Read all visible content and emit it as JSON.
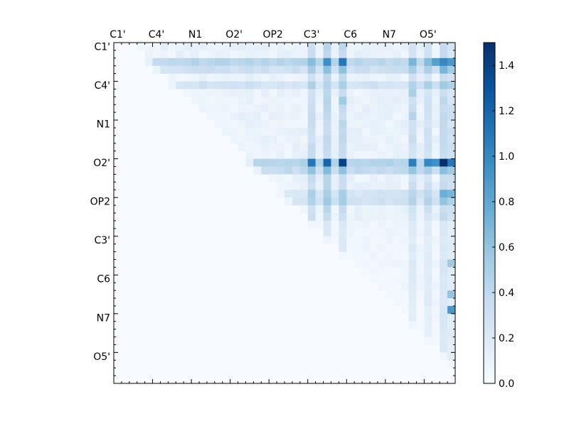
{
  "chart_data": {
    "type": "heatmap",
    "title": "",
    "xlabel": "",
    "ylabel": "",
    "n": 44,
    "tick_labels": [
      "C1'",
      "C4'",
      "N1",
      "O2'",
      "OP2",
      "C3'",
      "C6",
      "N7",
      "O5'"
    ],
    "tick_indices": [
      0,
      5,
      10,
      15,
      20,
      25,
      30,
      35,
      40
    ],
    "colorbar": {
      "vmin": 0.0,
      "vmax": 1.5,
      "ticks": [
        0.0,
        0.2,
        0.4,
        0.6,
        0.8,
        1.0,
        1.2,
        1.4
      ],
      "tick_labels": [
        "0.0",
        "0.2",
        "0.4",
        "0.6",
        "0.8",
        "1.0",
        "1.2",
        "1.4"
      ],
      "colormap": "Blues"
    },
    "strong_rows": [
      {
        "row": 2,
        "level": 0.55
      },
      {
        "row": 3,
        "level": 0.35
      },
      {
        "row": 5,
        "level": 0.3
      },
      {
        "row": 15,
        "level": 0.6
      },
      {
        "row": 16,
        "level": 0.45
      },
      {
        "row": 19,
        "level": 0.25
      },
      {
        "row": 20,
        "level": 0.3
      }
    ],
    "strong_cols": [
      {
        "col": 25,
        "level": 0.4
      },
      {
        "col": 27,
        "level": 0.5
      },
      {
        "col": 29,
        "level": 0.45
      },
      {
        "col": 38,
        "level": 0.35
      },
      {
        "col": 40,
        "level": 0.3
      },
      {
        "col": 42,
        "level": 0.45
      },
      {
        "col": 43,
        "level": 0.3
      }
    ],
    "peak_cells": [
      {
        "row": 15,
        "col": 42,
        "value": 1.5
      },
      {
        "row": 15,
        "col": 29,
        "value": 1.4
      },
      {
        "row": 15,
        "col": 27,
        "value": 1.2
      },
      {
        "row": 15,
        "col": 25,
        "value": 1.1
      },
      {
        "row": 15,
        "col": 38,
        "value": 1.05
      },
      {
        "row": 15,
        "col": 40,
        "value": 1.0
      },
      {
        "row": 15,
        "col": 41,
        "value": 0.95
      },
      {
        "row": 15,
        "col": 43,
        "value": 1.1
      },
      {
        "row": 2,
        "col": 29,
        "value": 1.1
      },
      {
        "row": 2,
        "col": 27,
        "value": 0.95
      },
      {
        "row": 2,
        "col": 42,
        "value": 1.0
      },
      {
        "row": 2,
        "col": 41,
        "value": 0.85
      },
      {
        "row": 2,
        "col": 43,
        "value": 0.9
      },
      {
        "row": 2,
        "col": 38,
        "value": 0.7
      },
      {
        "row": 2,
        "col": 25,
        "value": 0.65
      },
      {
        "row": 3,
        "col": 42,
        "value": 0.7
      },
      {
        "row": 19,
        "col": 42,
        "value": 0.75
      },
      {
        "row": 19,
        "col": 43,
        "value": 0.7
      },
      {
        "row": 20,
        "col": 42,
        "value": 0.6
      },
      {
        "row": 34,
        "col": 43,
        "value": 0.9
      },
      {
        "row": 32,
        "col": 43,
        "value": 0.6
      },
      {
        "row": 28,
        "col": 43,
        "value": 0.55
      },
      {
        "row": 9,
        "col": 38,
        "value": 0.45
      },
      {
        "row": 6,
        "col": 38,
        "value": 0.5
      },
      {
        "row": 5,
        "col": 27,
        "value": 0.45
      },
      {
        "row": 5,
        "col": 29,
        "value": 0.5
      },
      {
        "row": 7,
        "col": 27,
        "value": 0.45
      },
      {
        "row": 7,
        "col": 29,
        "value": 0.55
      }
    ]
  }
}
